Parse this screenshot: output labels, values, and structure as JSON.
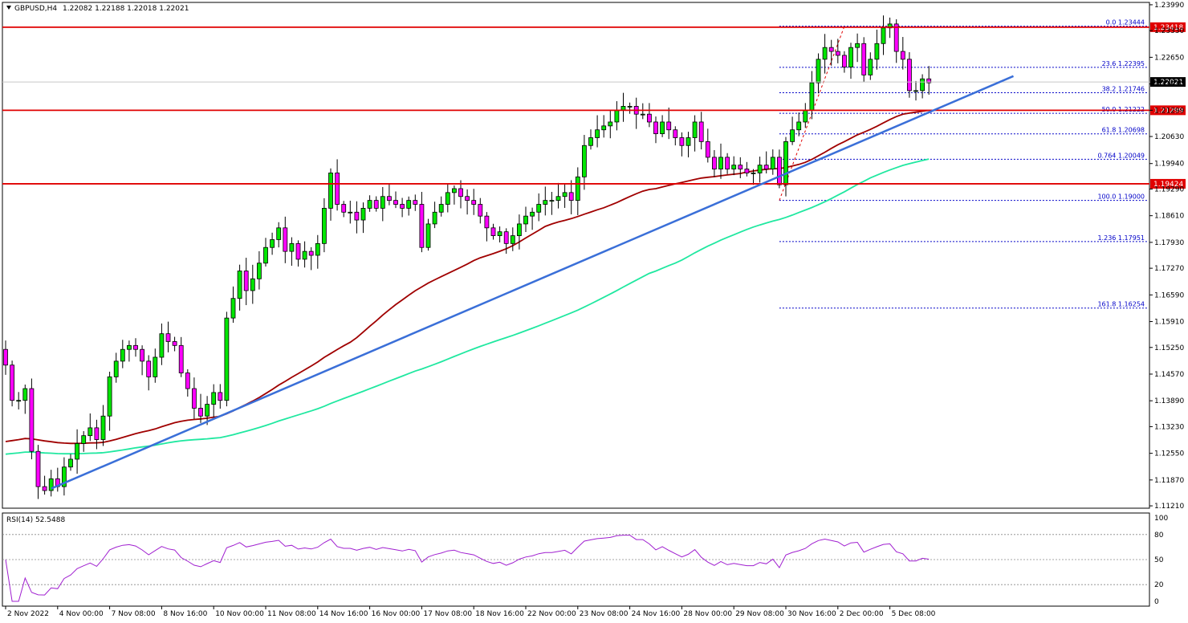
{
  "header": {
    "symbol": "GBPUSD,H4",
    "ohlc": "1.22082 1.22188 1.22018 1.22021"
  },
  "rsi_panel": {
    "label": "RSI(14) 52.5488",
    "levels": [
      "100",
      "80",
      "50",
      "20",
      "0"
    ]
  },
  "colors": {
    "bull": "#00e600",
    "bear": "#ff00ff",
    "ma_red": "#a00000",
    "ma_green": "#20e8a0",
    "trendline": "#3a6fd8",
    "hline": "#e00000",
    "fib": "#0000c8",
    "rsi": "#a020d0"
  },
  "chart_data": {
    "type": "candlestick",
    "symbol": "GBPUSD",
    "timeframe": "H4",
    "price_ticks": [
      "1.23990",
      "1.23330",
      "1.22650",
      "1.21970",
      "1.21299",
      "1.20630",
      "1.19940",
      "1.19290",
      "1.18610",
      "1.17930",
      "1.17270",
      "1.16590",
      "1.15910",
      "1.15250",
      "1.14570",
      "1.13890",
      "1.13230",
      "1.12550",
      "1.11870",
      "1.11210"
    ],
    "ylim": [
      1.1115,
      1.2405
    ],
    "time_ticks": [
      {
        "label": "2 Nov 2022",
        "bar": 0
      },
      {
        "label": "4 Nov 00:00",
        "bar": 8
      },
      {
        "label": "7 Nov 08:00",
        "bar": 16
      },
      {
        "label": "8 Nov 16:00",
        "bar": 24
      },
      {
        "label": "10 Nov 00:00",
        "bar": 32
      },
      {
        "label": "11 Nov 08:00",
        "bar": 40
      },
      {
        "label": "14 Nov 16:00",
        "bar": 48
      },
      {
        "label": "16 Nov 00:00",
        "bar": 56
      },
      {
        "label": "17 Nov 08:00",
        "bar": 64
      },
      {
        "label": "18 Nov 16:00",
        "bar": 72
      },
      {
        "label": "22 Nov 00:00",
        "bar": 80
      },
      {
        "label": "23 Nov 08:00",
        "bar": 88
      },
      {
        "label": "24 Nov 16:00",
        "bar": 96
      },
      {
        "label": "28 Nov 00:00",
        "bar": 104
      },
      {
        "label": "29 Nov 08:00",
        "bar": 112
      },
      {
        "label": "30 Nov 16:00",
        "bar": 120
      },
      {
        "label": "2 Dec 00:00",
        "bar": 128
      },
      {
        "label": "5 Dec 08:00",
        "bar": 136
      }
    ],
    "closes": [
      1.148,
      1.139,
      1.139,
      1.142,
      1.126,
      1.117,
      1.116,
      1.119,
      1.117,
      1.122,
      1.124,
      1.128,
      1.13,
      1.132,
      1.129,
      1.135,
      1.145,
      1.149,
      1.152,
      1.153,
      1.152,
      1.149,
      1.145,
      1.15,
      1.156,
      1.154,
      1.153,
      1.146,
      1.142,
      1.137,
      1.135,
      1.138,
      1.141,
      1.139,
      1.16,
      1.165,
      1.172,
      1.167,
      1.17,
      1.174,
      1.178,
      1.18,
      1.183,
      1.177,
      1.179,
      1.175,
      1.177,
      1.176,
      1.179,
      1.188,
      1.197,
      1.189,
      1.187,
      1.187,
      1.185,
      1.188,
      1.19,
      1.188,
      1.191,
      1.19,
      1.189,
      1.188,
      1.19,
      1.189,
      1.178,
      1.184,
      1.187,
      1.189,
      1.192,
      1.193,
      1.191,
      1.19,
      1.189,
      1.186,
      1.183,
      1.181,
      1.182,
      1.179,
      1.181,
      1.184,
      1.186,
      1.187,
      1.189,
      1.19,
      1.19,
      1.191,
      1.192,
      1.19,
      1.196,
      1.204,
      1.206,
      1.208,
      1.209,
      1.21,
      1.213,
      1.214,
      1.214,
      1.212,
      1.212,
      1.21,
      1.207,
      1.21,
      1.208,
      1.206,
      1.204,
      1.206,
      1.21,
      1.205,
      1.201,
      1.198,
      1.201,
      1.198,
      1.199,
      1.198,
      1.197,
      1.197,
      1.199,
      1.198,
      1.201,
      1.194,
      1.205,
      1.208,
      1.21,
      1.213,
      1.22,
      1.226,
      1.229,
      1.228,
      1.227,
      1.224,
      1.229,
      1.23,
      1.222,
      1.226,
      1.23,
      1.234,
      1.235,
      1.228,
      1.226,
      1.218,
      1.218,
      1.221,
      1.22
    ],
    "fibonacci": [
      {
        "label": "0.0 1.23444",
        "price": 1.23444
      },
      {
        "label": "23.6 1.22395",
        "price": 1.22395
      },
      {
        "label": "38.2 1.21746",
        "price": 1.21746
      },
      {
        "label": "50.0 1.21222",
        "price": 1.21222
      },
      {
        "label": "61.8 1.20698",
        "price": 1.20698
      },
      {
        "label": "0.764 1.20049",
        "price": 1.20049
      },
      {
        "label": "100.0 1.19000",
        "price": 1.19
      },
      {
        "label": "1.236 1.17951",
        "price": 1.17951
      },
      {
        "label": "161.8 1.16254",
        "price": 1.16254
      }
    ],
    "horizontal_lines": [
      {
        "label": "1.23418",
        "price": 1.23418
      },
      {
        "label": "1.21299",
        "price": 1.21299
      },
      {
        "label": "1.19424",
        "price": 1.19424
      }
    ],
    "current_price": {
      "label": "1.22021",
      "price": 1.22021
    },
    "trendline": {
      "from": {
        "bar": 7,
        "price": 1.1165
      },
      "to": {
        "bar": 155,
        "price": 1.2217
      }
    },
    "rsi_value": 52.5488
  }
}
